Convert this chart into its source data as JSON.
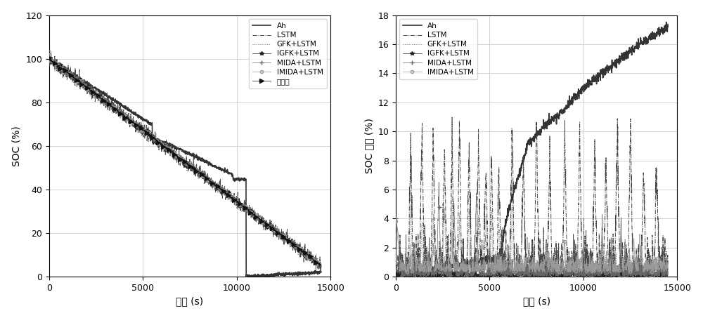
{
  "xlabel": "时间 (s)",
  "ylabel_left": "SOC (%)",
  "ylabel_right": "SOC 误差 (%)",
  "xlim": [
    0,
    15000
  ],
  "ylim_left": [
    0,
    120
  ],
  "ylim_right": [
    0,
    18
  ],
  "yticks_left": [
    0,
    20,
    40,
    60,
    80,
    100,
    120
  ],
  "yticks_right": [
    0,
    2,
    4,
    6,
    8,
    10,
    12,
    14,
    16,
    18
  ],
  "xticks": [
    0,
    5000,
    10000,
    15000
  ],
  "legend_labels_left": [
    "Ah",
    "LSTM",
    "GFK+LSTM",
    "IGFK+LSTM",
    "MIDA+LSTM",
    "IMIDA+LSTM",
    "参考値"
  ],
  "legend_labels_right": [
    "Ah",
    "LSTM",
    "GFK+LSTM",
    "IGFK+LSTM",
    "MIDA+LSTM",
    "IMIDA+LSTM"
  ],
  "background_color": "#ffffff",
  "grid_color": "#cccccc"
}
